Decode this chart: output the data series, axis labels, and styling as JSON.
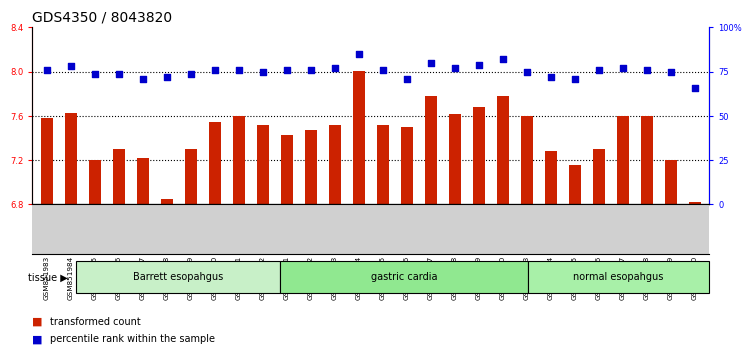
{
  "title": "GDS4350 / 8043820",
  "samples": [
    "GSM851983",
    "GSM851984",
    "GSM851985",
    "GSM851986",
    "GSM851987",
    "GSM851988",
    "GSM851989",
    "GSM851990",
    "GSM851991",
    "GSM851992",
    "GSM852001",
    "GSM852002",
    "GSM852003",
    "GSM852004",
    "GSM852005",
    "GSM852006",
    "GSM852007",
    "GSM852008",
    "GSM852009",
    "GSM852010",
    "GSM851993",
    "GSM851994",
    "GSM851995",
    "GSM851996",
    "GSM851997",
    "GSM851998",
    "GSM851999",
    "GSM852000"
  ],
  "bar_values": [
    7.58,
    7.63,
    7.2,
    7.3,
    7.22,
    6.85,
    7.3,
    7.55,
    7.6,
    7.52,
    7.43,
    7.47,
    7.52,
    8.01,
    7.52,
    7.5,
    7.78,
    7.62,
    7.68,
    7.78,
    7.6,
    7.28,
    7.16,
    7.3,
    7.6,
    7.6,
    7.2,
    6.82
  ],
  "dot_values": [
    76,
    78,
    74,
    74,
    71,
    72,
    74,
    76,
    76,
    75,
    76,
    76,
    77,
    85,
    76,
    71,
    80,
    77,
    79,
    82,
    75,
    72,
    71,
    76,
    77,
    76,
    75,
    66
  ],
  "groups": [
    {
      "label": "Barrett esopahgus",
      "start": 0,
      "end": 9,
      "color": "#c8f0c8"
    },
    {
      "label": "gastric cardia",
      "start": 9,
      "end": 20,
      "color": "#90e890"
    },
    {
      "label": "normal esopahgus",
      "start": 20,
      "end": 28,
      "color": "#a8f0a8"
    }
  ],
  "ylim_left": [
    6.8,
    8.4
  ],
  "ylim_right": [
    0,
    100
  ],
  "yticks_left": [
    6.8,
    7.2,
    7.6,
    8.0,
    8.4
  ],
  "yticks_right": [
    0,
    25,
    50,
    75,
    100
  ],
  "bar_color": "#cc2200",
  "dot_color": "#0000cc",
  "title_fontsize": 10,
  "tick_fontsize": 6,
  "sample_fontsize": 5.2
}
